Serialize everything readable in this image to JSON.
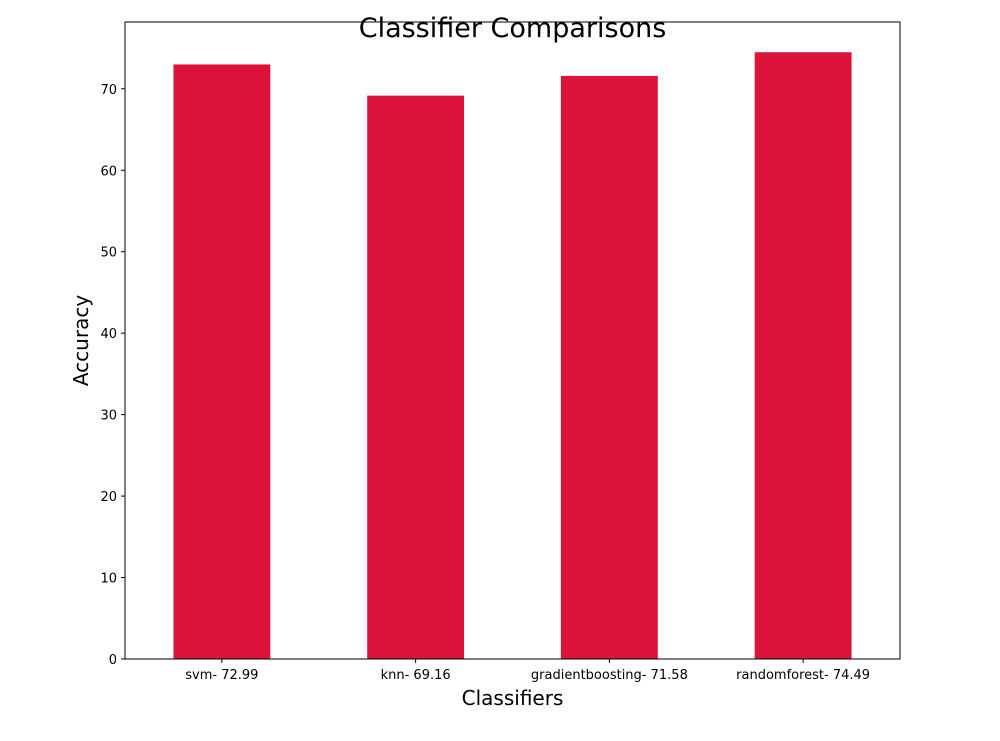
{
  "chart_data": {
    "type": "bar",
    "title": "Classifier Comparisons",
    "xlabel": "Classifiers",
    "ylabel": "Accuracy",
    "categories": [
      "svm- 72.99",
      "knn- 69.16",
      "gradientboosting- 71.58",
      "randomforest- 74.49"
    ],
    "values": [
      72.99,
      69.16,
      71.58,
      74.49
    ],
    "ylim": [
      0,
      78.2
    ],
    "yticks": [
      0,
      10,
      20,
      30,
      40,
      50,
      60,
      70
    ],
    "grid": false,
    "colors": {
      "bar": "#dc143c"
    }
  }
}
